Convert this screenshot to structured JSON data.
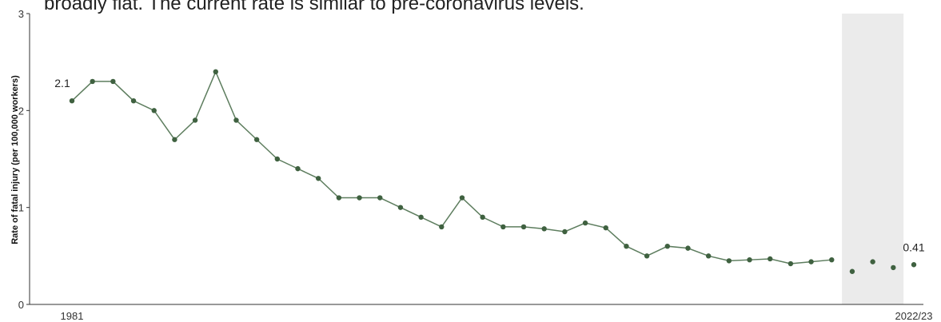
{
  "chart_data": {
    "type": "line",
    "subtitle": "broadly flat. The current rate is similar to pre-coronavirus levels.",
    "ylabel": "Rate of fatal injury (per 100,000 workers)",
    "categories": [
      "1981",
      null,
      null,
      null,
      null,
      null,
      null,
      null,
      null,
      null,
      null,
      null,
      null,
      null,
      null,
      null,
      null,
      null,
      null,
      null,
      null,
      null,
      null,
      null,
      null,
      null,
      null,
      null,
      null,
      null,
      null,
      null,
      null,
      null,
      null,
      null,
      null,
      null,
      null,
      null,
      null,
      "2022/23"
    ],
    "series": [
      {
        "color": "#3f6140",
        "values": [
          2.1,
          2.3,
          2.3,
          2.1,
          2.0,
          1.7,
          1.9,
          2.4,
          1.9,
          1.7,
          1.5,
          1.4,
          1.3,
          1.1,
          1.1,
          1.1,
          1.0,
          0.9,
          0.8,
          1.1,
          0.9,
          0.8,
          0.8,
          0.78,
          0.75,
          0.84,
          0.79,
          0.6,
          0.5,
          0.6,
          0.58,
          0.5,
          0.45,
          0.46,
          0.47,
          0.42,
          0.44,
          0.46,
          0.34,
          0.44,
          0.38,
          0.41
        ]
      }
    ],
    "unconnected_from": 38,
    "shaded_categories": [
      38,
      40
    ],
    "shade_color": "#ebebeb",
    "data_labels": [
      0,
      41
    ],
    "ylim": [
      0,
      3
    ],
    "yticks": [
      0,
      1,
      2,
      3
    ],
    "grid": false
  }
}
